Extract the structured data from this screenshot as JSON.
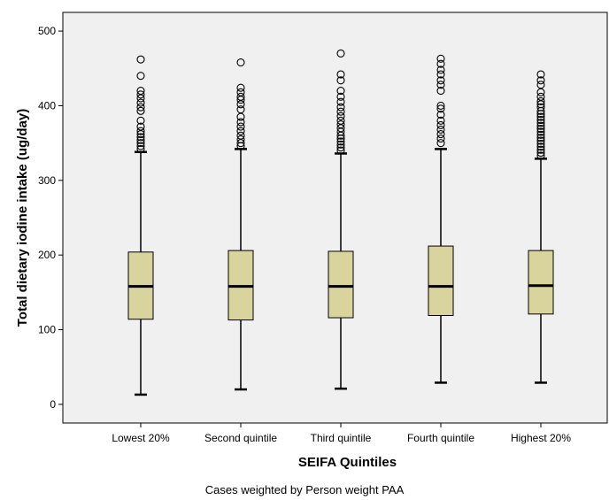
{
  "chart_data": {
    "type": "box",
    "title": "",
    "xlabel": "SEIFA Quintiles",
    "ylabel": "Total dietary iodine intake (ug/day)",
    "ylim": [
      -25,
      525
    ],
    "yticks": [
      0,
      100,
      200,
      300,
      400,
      500
    ],
    "grid": false,
    "colors": {
      "box_fill": "#d9d39e",
      "plot_bg": "#f0f0f0",
      "line": "#000000"
    },
    "categories": [
      "Lowest 20%",
      "Second quintile",
      "Third quintile",
      "Fourth quintile",
      "Highest 20%"
    ],
    "boxes": [
      {
        "whisker_low": 13,
        "q1": 114,
        "median": 158,
        "q3": 204,
        "whisker_high": 338,
        "outliers": [
          342,
          346,
          350,
          354,
          358,
          362,
          366,
          372,
          380,
          393,
          398,
          404,
          410,
          415,
          420,
          440,
          462
        ]
      },
      {
        "whisker_low": 20,
        "q1": 113,
        "median": 158,
        "q3": 206,
        "whisker_high": 342,
        "outliers": [
          346,
          350,
          355,
          360,
          366,
          372,
          378,
          385,
          395,
          402,
          408,
          412,
          418,
          424,
          458
        ]
      },
      {
        "whisker_low": 21,
        "q1": 116,
        "median": 158,
        "q3": 205,
        "whisker_high": 336,
        "outliers": [
          340,
          344,
          348,
          352,
          356,
          360,
          365,
          370,
          375,
          380,
          386,
          392,
          398,
          405,
          412,
          420,
          434,
          442,
          470
        ]
      },
      {
        "whisker_low": 29,
        "q1": 119,
        "median": 158,
        "q3": 212,
        "whisker_high": 342,
        "outliers": [
          350,
          356,
          362,
          368,
          374,
          380,
          388,
          396,
          400,
          420,
          428,
          434,
          442,
          448,
          456,
          463
        ]
      },
      {
        "whisker_low": 29,
        "q1": 121,
        "median": 159,
        "q3": 206,
        "whisker_high": 329,
        "outliers": [
          333,
          337,
          341,
          345,
          349,
          353,
          357,
          361,
          365,
          369,
          373,
          377,
          381,
          385,
          389,
          393,
          398,
          402,
          406,
          412,
          418,
          428,
          434,
          442
        ]
      }
    ],
    "footnote": "Cases weighted by Person weight PAA"
  }
}
